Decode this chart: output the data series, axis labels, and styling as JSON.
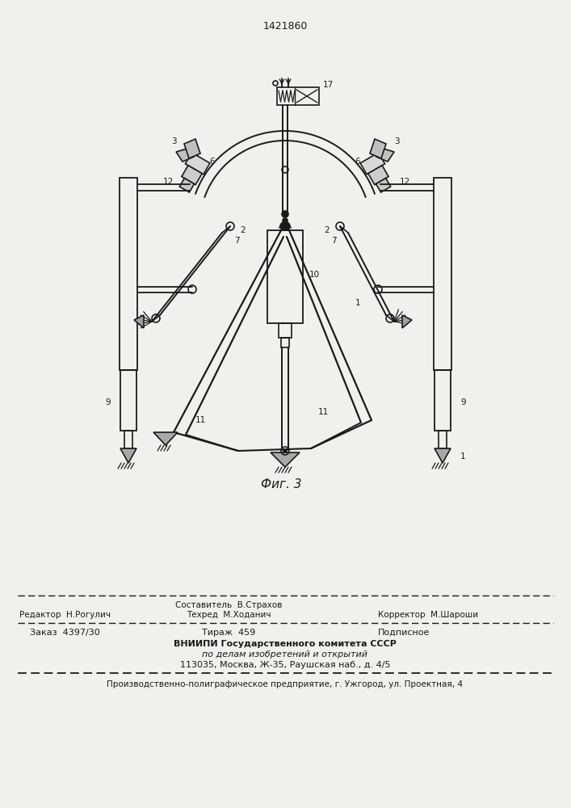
{
  "title_number": "1421860",
  "fig_label": "Фиг. 3",
  "bg_color": "#f0f0ec",
  "line_color": "#1a1a1a",
  "footer": {
    "line1_left": "Редактор  Н.Рогулич",
    "line1_center_top": "Составитель  В.Страхов",
    "line1_center_bot": "Техред  М.Ходанич",
    "line1_right": "Корректор  М.Шароши",
    "line2_left": "Заказ  4397/30",
    "line2_center": "Тираж  459",
    "line2_right": "Подписное",
    "vniipii1": "ВНИИПИ Государственного комитета СССР",
    "vniipii2": "по делам изобретений и открытий",
    "vniipii3": "113035, Москва, Ж-35, Раушская наб., д. 4/5",
    "production": "Производственно-полиграфическое предприятие, г. Ужгород, ул. Проектная, 4"
  }
}
